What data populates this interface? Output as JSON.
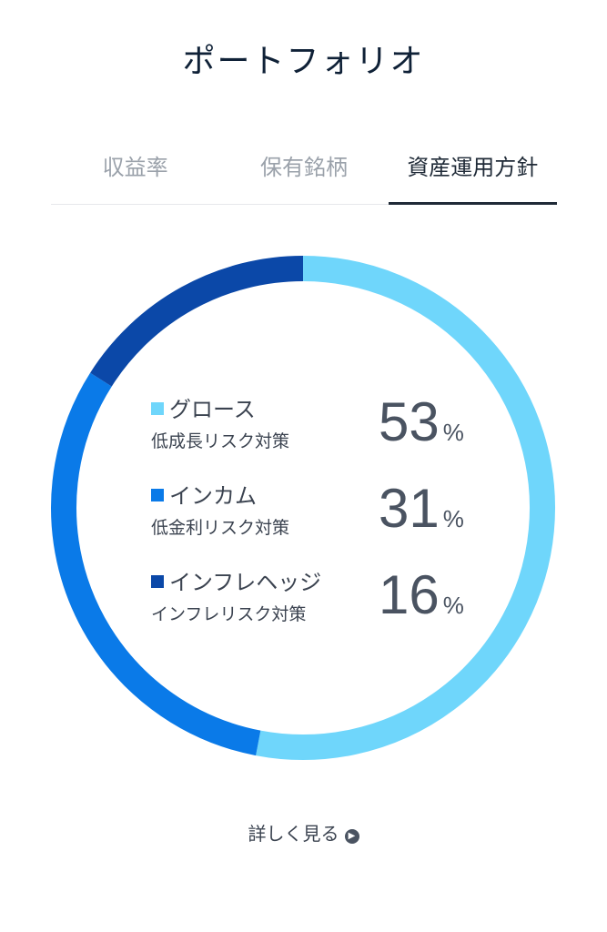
{
  "header": {
    "title": "ポートフォリオ"
  },
  "tabs": [
    {
      "label": "収益率",
      "active": false
    },
    {
      "label": "保有銘柄",
      "active": false
    },
    {
      "label": "資産運用方針",
      "active": true
    }
  ],
  "chart_data": {
    "type": "pie",
    "categories": [
      "グロース",
      "インカム",
      "インフレヘッジ"
    ],
    "values": [
      53,
      31,
      16
    ],
    "descriptions": [
      "低成長リスク対策",
      "低金利リスク対策",
      "インフレリスク対策"
    ],
    "unit": "%",
    "colors": [
      "#6fd6fb",
      "#0a7ae8",
      "#0b48a8"
    ]
  },
  "footer": {
    "more_label": "詳しく見る",
    "more_icon": "chevron-right-circle-icon"
  }
}
